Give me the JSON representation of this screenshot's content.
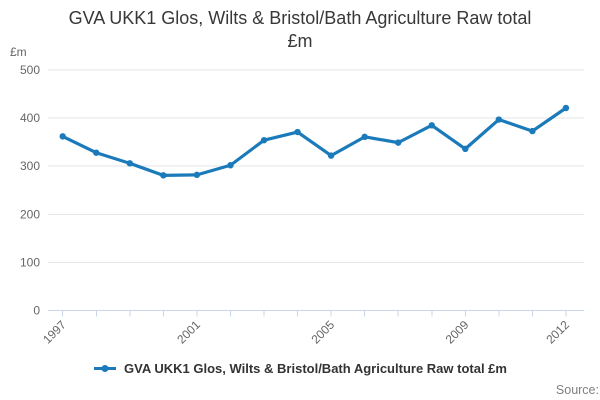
{
  "page": {
    "title_lines": [
      "GVA UKK1 Glos, Wilts & Bristol/Bath Agriculture Raw total",
      "£m"
    ]
  },
  "footer": {
    "source_label": "Source:"
  },
  "colors": {
    "line": "#1b7ab9",
    "grid": "#e6e6e6",
    "axis": "#ccd6eb",
    "tick_text": "#666666",
    "title_text": "#383838",
    "legend_text": "#333333",
    "source_text": "#808080"
  },
  "chart_data": {
    "type": "line",
    "title": "GVA UKK1 Glos, Wilts & Bristol/Bath Agriculture Raw total £m",
    "ylabel": "£m",
    "xlabel": "",
    "ylim": [
      0,
      500
    ],
    "yticks": [
      0,
      100,
      200,
      300,
      400,
      500
    ],
    "grid": "horizontal-only",
    "legend_position": "bottom",
    "x": [
      1997,
      1998,
      1999,
      2000,
      2001,
      2002,
      2003,
      2004,
      2005,
      2006,
      2007,
      2008,
      2009,
      2010,
      2011,
      2012
    ],
    "x_tick_labels_shown": [
      "1997",
      "2001",
      "2005",
      "2009",
      "2012"
    ],
    "series": [
      {
        "name": "GVA UKK1 Glos, Wilts & Bristol/Bath Agriculture Raw total £m",
        "values": [
          362,
          328,
          306,
          281,
          282,
          302,
          354,
          371,
          322,
          361,
          349,
          385,
          336,
          397,
          373,
          421
        ]
      }
    ]
  }
}
